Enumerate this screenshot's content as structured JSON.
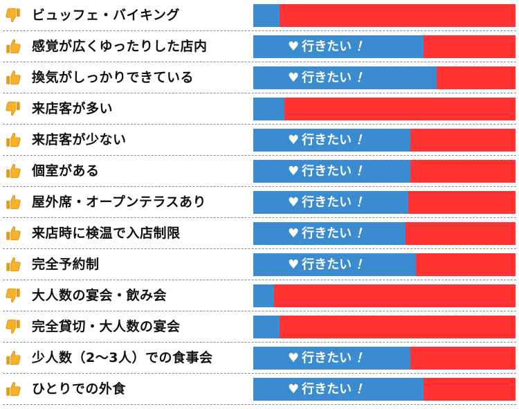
{
  "chart_data": {
    "type": "bar",
    "title": "",
    "xlabel": "",
    "ylabel": "",
    "ylim": [
      0,
      100
    ],
    "want_label": "行きたい",
    "want_mark": "！",
    "colors": {
      "positive": "#3b8bd0",
      "negative": "#ff3333"
    },
    "categories": [
      "ビュッフェ・バイキング",
      "感覚が広くゆったりした店内",
      "換気がしっかりできている",
      "来店客が多い",
      "来店客が少ない",
      "個室がある",
      "屋外席・オープンテラスあり",
      "来店時に検温で入店制限",
      "完全予約制",
      "大人数の宴会・飲み会",
      "完全貸切・大人数の宴会",
      "少人数（2〜3人）での食事会",
      "ひとりでの外食"
    ],
    "icons": [
      "thumbs-down-icon",
      "thumbs-up-icon",
      "thumbs-up-icon",
      "thumbs-down-icon",
      "thumbs-up-icon",
      "thumbs-up-icon",
      "thumbs-up-icon",
      "thumbs-up-icon",
      "thumbs-up-icon",
      "thumbs-down-icon",
      "thumbs-down-icon",
      "thumbs-up-icon",
      "thumbs-up-icon"
    ],
    "show_want": [
      false,
      true,
      true,
      false,
      true,
      true,
      true,
      true,
      true,
      false,
      false,
      true,
      true
    ],
    "values": [
      10,
      65,
      70,
      12,
      60,
      60,
      59,
      58,
      62,
      8,
      10,
      60,
      65
    ]
  }
}
